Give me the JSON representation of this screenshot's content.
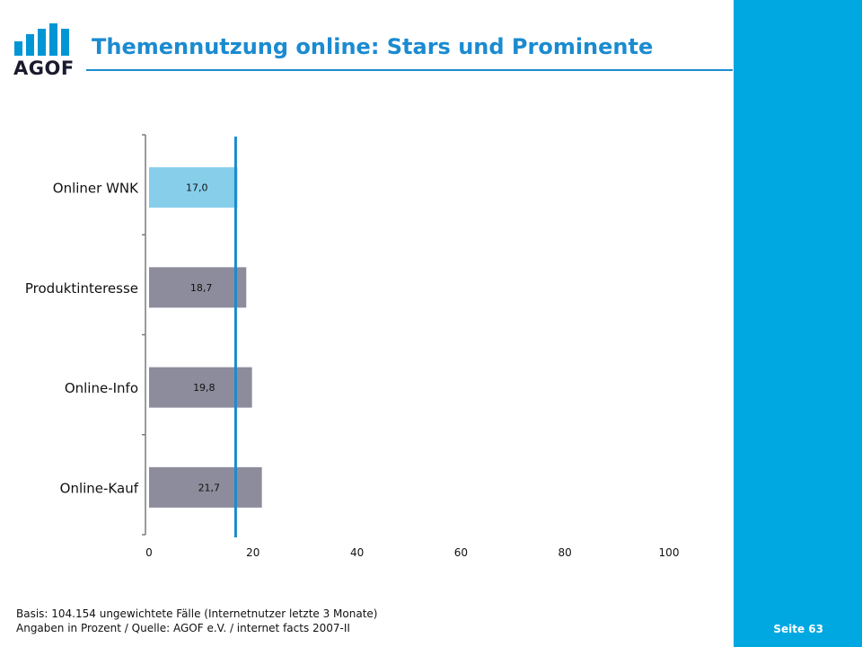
{
  "header": {
    "logo_text": "AGOF",
    "title": "Themennutzung online: Stars und Prominente"
  },
  "footer": {
    "basis": "Basis: 104.154 ungewichtete Fälle (Internetnutzer letzte 3 Monate)",
    "source": "Angaben in Prozent / Quelle: AGOF e.V. / internet facts 2007-II",
    "page": "Seite 63"
  },
  "colors": {
    "accent": "#1b8bd0",
    "sidebar": "#00a8e2",
    "highlight_bar": "#87ceeb",
    "bar": "#8c8c9c",
    "reference_line": "#1b8bd0"
  },
  "chart_data": {
    "type": "bar",
    "orientation": "horizontal",
    "categories": [
      "Onliner WNK",
      "Produktinteresse",
      "Online-Info",
      "Online-Kauf"
    ],
    "values": [
      17.0,
      18.7,
      19.8,
      21.7
    ],
    "value_labels": [
      "17,0",
      "18,7",
      "19,8",
      "21,7"
    ],
    "highlight_index": 0,
    "reference_value": 17.0,
    "xlim": [
      0,
      100
    ],
    "xticks": [
      0,
      20,
      40,
      60,
      80,
      100
    ],
    "grid": false
  }
}
